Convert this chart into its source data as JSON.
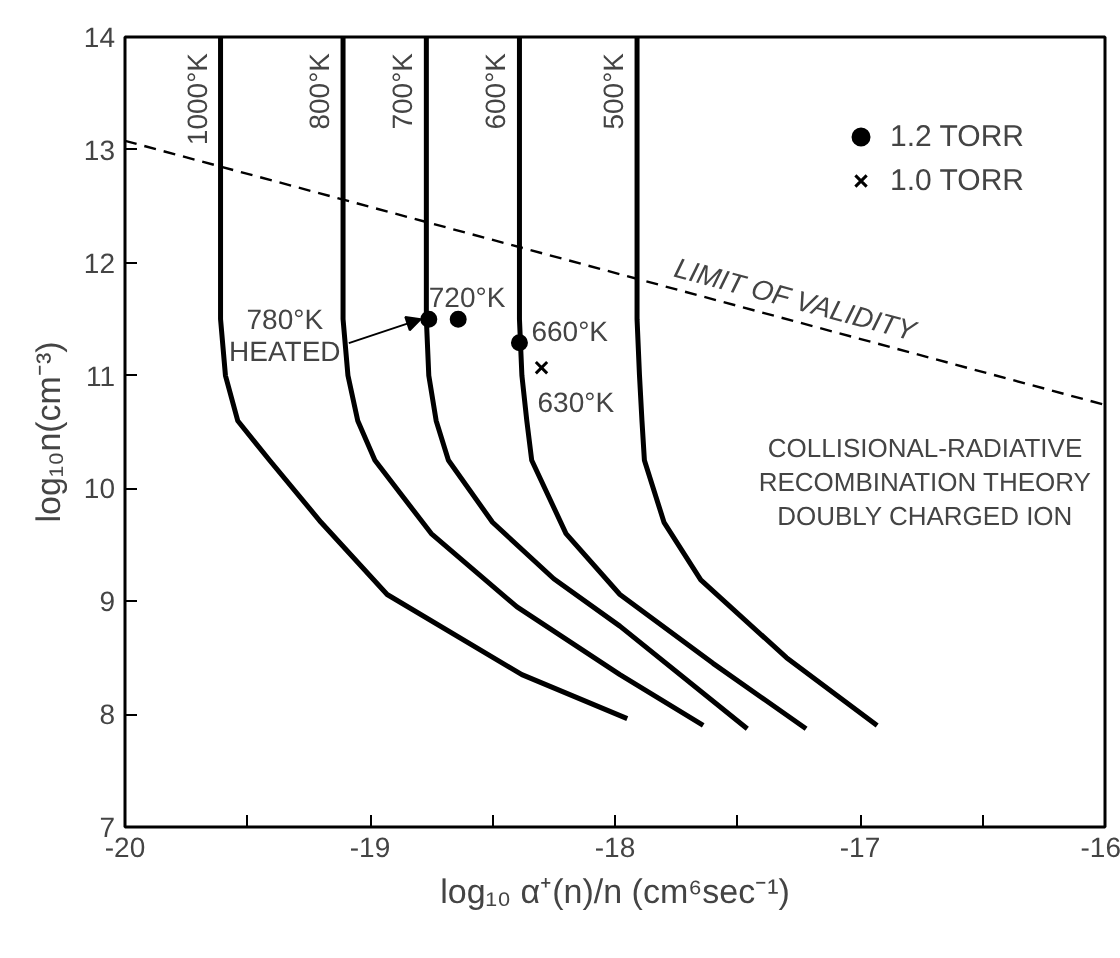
{
  "chart_data": {
    "type": "line",
    "xlabel": "log₁₀ α⁺(n)/n (cm⁶sec⁻¹)",
    "ylabel": "log₁₀n(cm⁻³)",
    "xlim": [
      -20,
      -16
    ],
    "ylim": [
      7,
      14
    ],
    "xticks": [
      -20,
      {
        "value": -19.5,
        "label": null
      },
      -19,
      {
        "value": -18.5,
        "label": null
      },
      -18,
      {
        "value": -17.5,
        "label": null
      },
      -17,
      {
        "value": -16.5,
        "label": null
      },
      -16
    ],
    "yticks": [
      7,
      8,
      9,
      10,
      11,
      12,
      13,
      14
    ],
    "grid": false,
    "legend": "top right",
    "line_style": "solid",
    "marker": "none",
    "series": [
      {
        "name": "1000°K",
        "color": "#000000",
        "x": [
          -19.61,
          -19.61,
          -19.59,
          -19.54,
          -19.41,
          -19.2,
          -18.93,
          -18.38,
          -17.95
        ],
        "values": [
          14,
          11.5,
          11.0,
          10.6,
          10.25,
          9.7,
          9.06,
          8.35,
          7.96
        ]
      },
      {
        "name": "800°K",
        "color": "#000000",
        "x": [
          -19.11,
          -19.11,
          -19.09,
          -19.05,
          -18.98,
          -18.75,
          -18.4,
          -17.98,
          -17.64
        ],
        "values": [
          14,
          11.5,
          11.0,
          10.6,
          10.25,
          9.6,
          8.95,
          8.35,
          7.9
        ]
      },
      {
        "name": "700°K",
        "color": "#000000",
        "x": [
          -18.77,
          -18.77,
          -18.76,
          -18.73,
          -18.68,
          -18.5,
          -18.25,
          -17.98,
          -17.46
        ],
        "values": [
          14,
          11.5,
          11.0,
          10.6,
          10.25,
          9.7,
          9.2,
          8.78,
          7.87
        ]
      },
      {
        "name": "600°K",
        "color": "#000000",
        "x": [
          -18.39,
          -18.39,
          -18.38,
          -18.36,
          -18.34,
          -18.2,
          -17.98,
          -17.6,
          -17.22
        ],
        "values": [
          14,
          11.5,
          11.0,
          10.6,
          10.25,
          9.6,
          9.06,
          8.45,
          7.87
        ]
      },
      {
        "name": "500°K",
        "color": "#000000",
        "x": [
          -17.91,
          -17.91,
          -17.9,
          -17.89,
          -17.88,
          -17.8,
          -17.65,
          -17.3,
          -16.93
        ],
        "values": [
          14,
          11.5,
          11.0,
          10.6,
          10.25,
          9.7,
          9.19,
          8.5,
          7.9
        ]
      },
      {
        "name": "LIMIT OF VALIDITY",
        "color": "#000000",
        "line_style": "dashed",
        "x": [
          -20,
          -16
        ],
        "values": [
          13.08,
          10.74
        ]
      },
      {
        "name": "1.2 TORR",
        "type": "scatter",
        "marker": "circle",
        "color": "#000000",
        "x": [
          -18.76,
          -18.64,
          -18.39
        ],
        "values": [
          11.5,
          11.5,
          11.29
        ]
      },
      {
        "name": "1.0 TORR",
        "type": "scatter",
        "marker": "cross",
        "color": "#000000",
        "x": [
          -18.3
        ],
        "values": [
          11.07
        ]
      }
    ],
    "annotations": [
      {
        "text": "720°K",
        "x": -18.76,
        "y": 11.5
      },
      {
        "text": "780°K\nHEATED",
        "x": -18.76,
        "y": 11.5
      },
      {
        "text": "660°K",
        "x": -18.39,
        "y": 11.29
      },
      {
        "text": "630°K",
        "x": -18.3,
        "y": 11.07
      },
      "COLLISIONAL-RADIATIVE\nRECOMBINATION THEORY\nDOUBLY CHARGED ION"
    ]
  }
}
